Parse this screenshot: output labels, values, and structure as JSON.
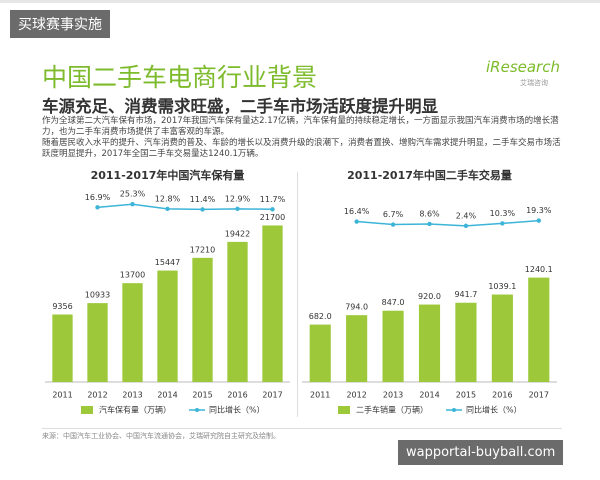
{
  "page": {
    "watermark_top": "买球赛事实施",
    "title": "中国二手车电商行业背景",
    "logo": "iResearch",
    "logo_sub": "艾瑞咨询",
    "subtitle": "车源充足、消费需求旺盛，二手车市场活跃度提升明显",
    "paragraphs": [
      "作为全球第二大汽车保有市场，2017年我国汽车保有量达2.17亿辆，汽车保有量的持续稳定增长，一方面显示我国汽车消费市场的增长潜力，也为二手车消费市场提供了丰富客观的车源。",
      "随着居民收入水平的提升、汽车消费的普及、车龄的增长以及消费升级的浪潮下，消费者置换、增购汽车需求提升明显，二手车交易市场活跃度明显提升，2017年全国二手车交易量达1240.1万辆。"
    ],
    "source": "来源：中国汽车工业协会、中国汽车流通协会，艾瑞研究院自主研究及绘制。",
    "watermark_bottom": "wapportal-buyball.com"
  },
  "chart_data": [
    {
      "type": "bar",
      "title": "2011-2017年中国汽车保有量",
      "categories": [
        "2011",
        "2012",
        "2013",
        "2014",
        "2015",
        "2016",
        "2017"
      ],
      "ylim": [
        0,
        28000
      ],
      "y2lim": [
        -450,
        90
      ],
      "series": [
        {
          "name": "汽车保有量（万辆）",
          "color": "#9cc83a",
          "values": [
            9356,
            10933,
            13700,
            15447,
            17210,
            19422,
            21700
          ]
        },
        {
          "name": "同比增长（%）",
          "color": "#3cb4d8",
          "axis": "y2",
          "values": [
            null,
            16.9,
            25.3,
            12.8,
            11.4,
            12.9,
            11.7
          ],
          "value_labels": [
            null,
            "16.9%",
            "25.3%",
            "12.8%",
            "11.4%",
            "12.9%",
            "11.7%"
          ]
        }
      ]
    },
    {
      "type": "bar",
      "title": "2011-2017年中国二手车交易量",
      "categories": [
        "2011",
        "2012",
        "2013",
        "2014",
        "2015",
        "2016",
        "2017"
      ],
      "ylim": [
        0,
        2400
      ],
      "y2lim": [
        -500,
        150
      ],
      "series": [
        {
          "name": "二手车销量（万辆）",
          "color": "#9cc83a",
          "values": [
            682,
            794,
            847,
            920,
            941.7,
            1039.1,
            1240.1
          ],
          "value_labels": [
            "682.0",
            "794.0",
            "847.0",
            "920.0",
            "941.7",
            "1039.1",
            "1240.1"
          ]
        },
        {
          "name": "同比增长（%）",
          "color": "#3cb4d8",
          "axis": "y2",
          "values": [
            null,
            16.4,
            6.7,
            8.6,
            2.4,
            10.3,
            19.3
          ],
          "value_labels": [
            null,
            "16.4%",
            "6.7%",
            "8.6%",
            "2.4%",
            "10.3%",
            "19.3%"
          ]
        }
      ]
    }
  ]
}
